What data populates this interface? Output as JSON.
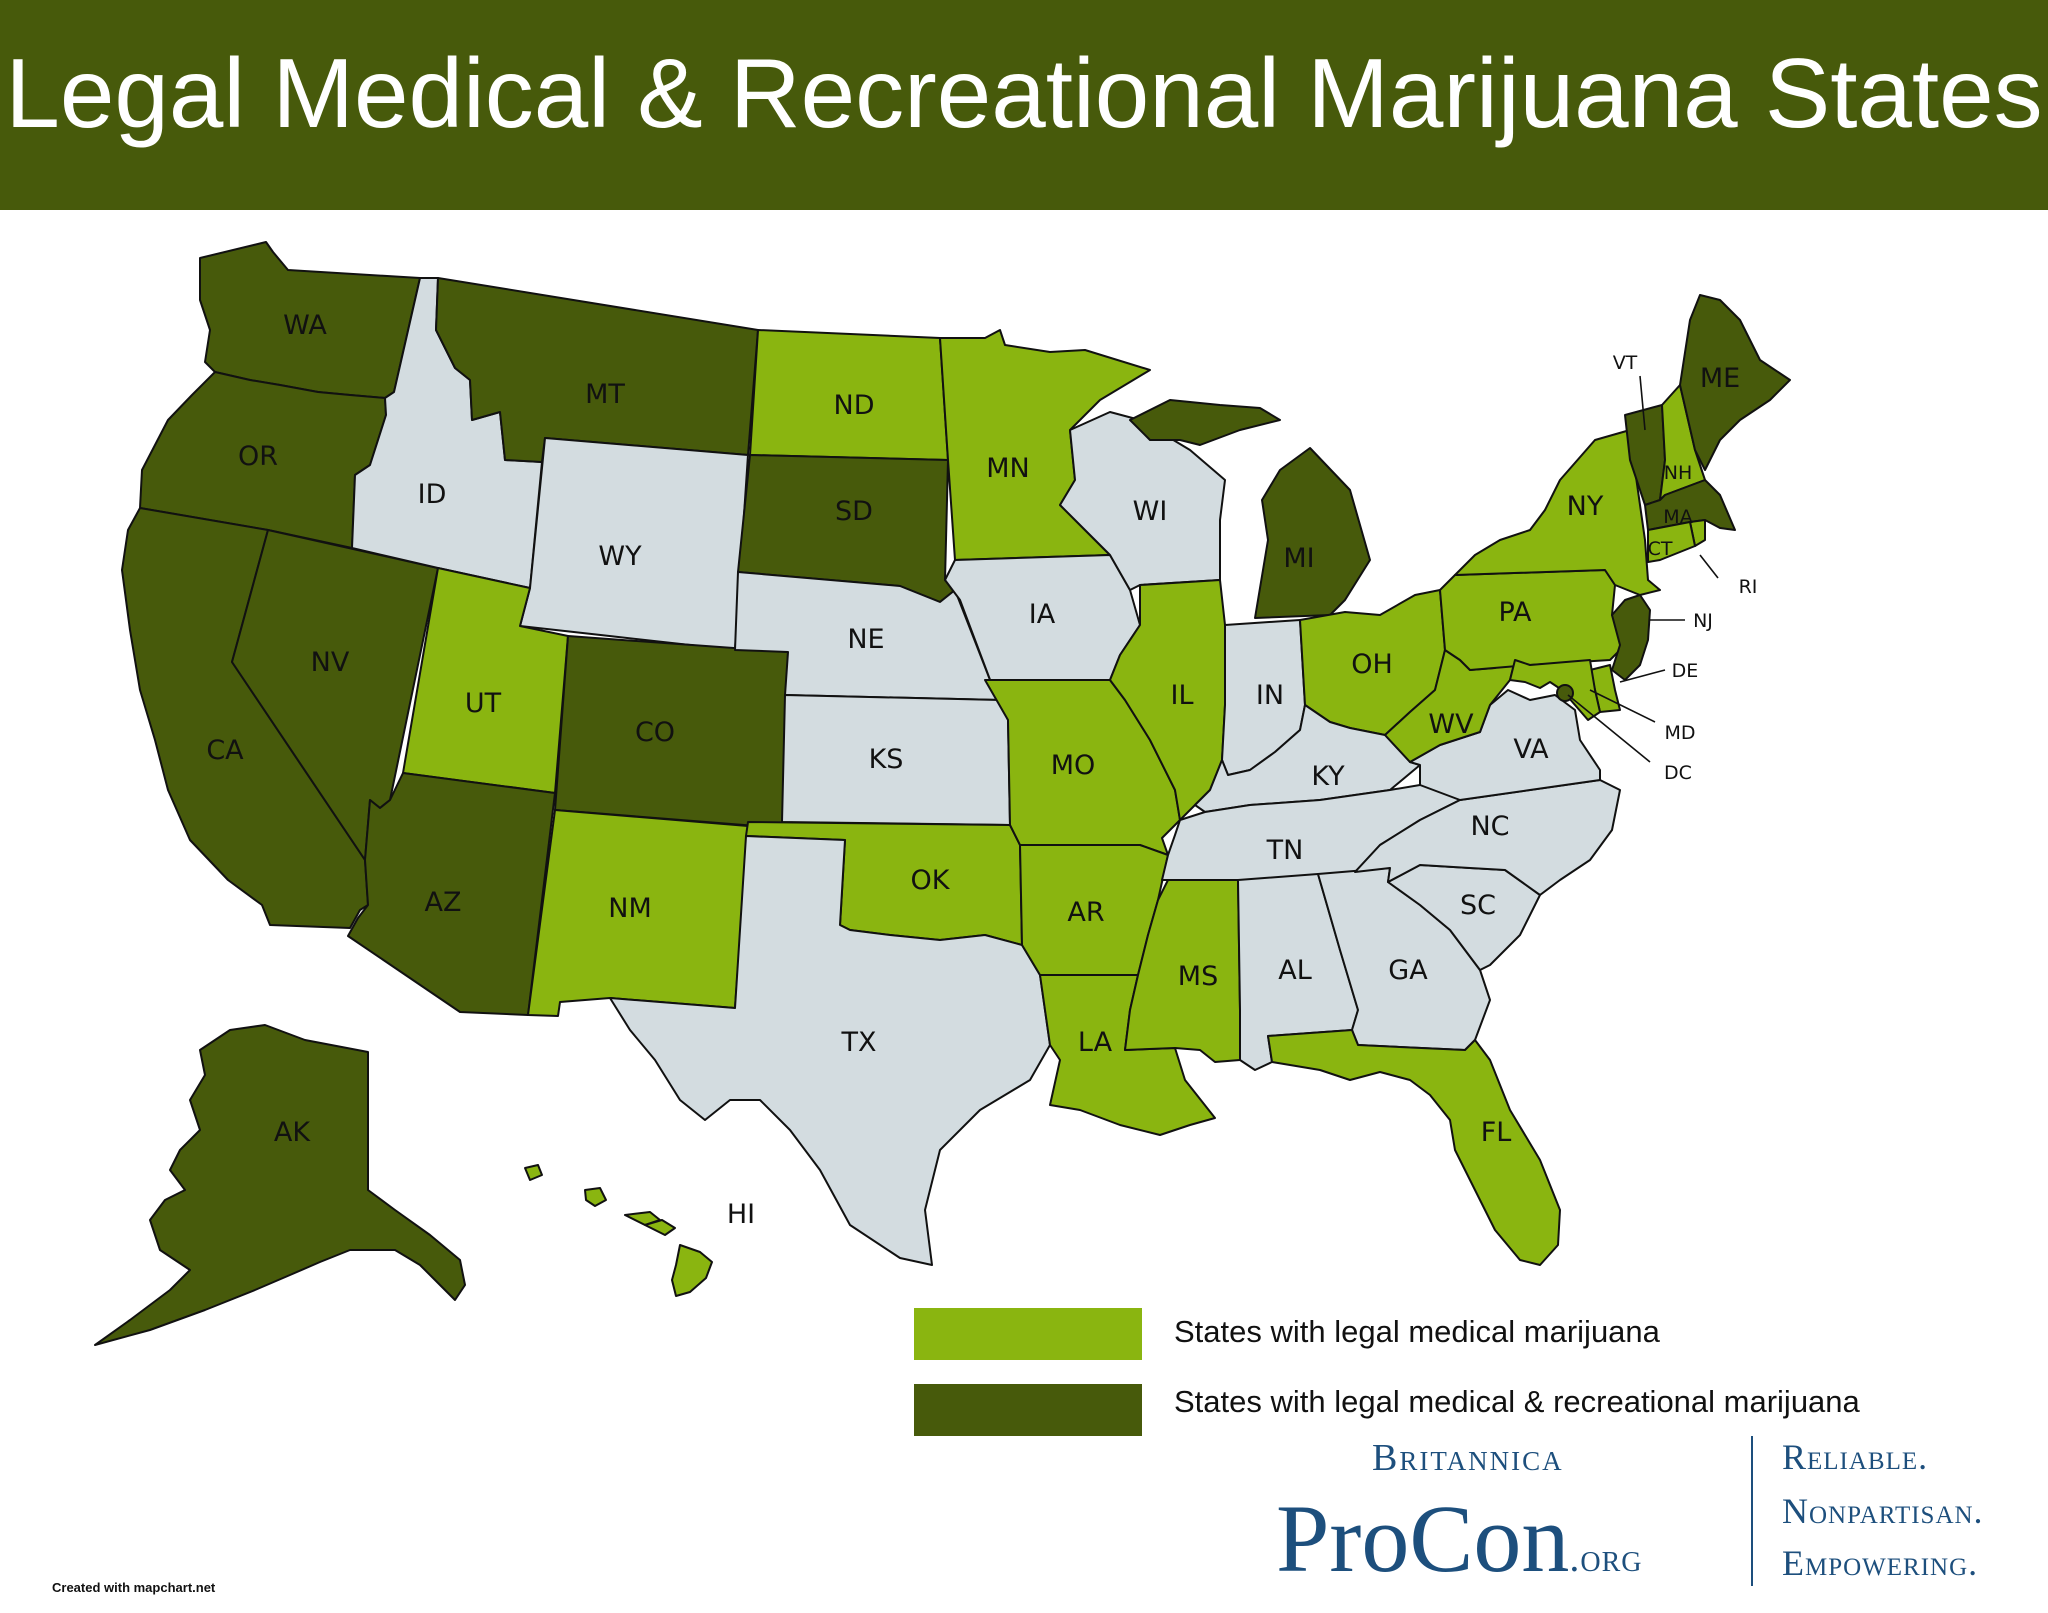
{
  "title": "Legal Medical & Recreational Marijuana States",
  "colors": {
    "banner": "#475a0b",
    "medical": "#8ab510",
    "recreational": "#475a0b",
    "neither": "#d3dce0"
  },
  "legend": {
    "medical_label": "States with legal medical marijuana",
    "recreational_label": "States with legal medical & recreational marijuana"
  },
  "states": [
    {
      "code": "WA",
      "status": "recreational"
    },
    {
      "code": "OR",
      "status": "recreational"
    },
    {
      "code": "CA",
      "status": "recreational"
    },
    {
      "code": "NV",
      "status": "recreational"
    },
    {
      "code": "ID",
      "status": "none"
    },
    {
      "code": "MT",
      "status": "recreational"
    },
    {
      "code": "WY",
      "status": "none"
    },
    {
      "code": "UT",
      "status": "medical"
    },
    {
      "code": "CO",
      "status": "recreational"
    },
    {
      "code": "AZ",
      "status": "recreational"
    },
    {
      "code": "NM",
      "status": "medical"
    },
    {
      "code": "ND",
      "status": "medical"
    },
    {
      "code": "SD",
      "status": "recreational"
    },
    {
      "code": "NE",
      "status": "none"
    },
    {
      "code": "KS",
      "status": "none"
    },
    {
      "code": "OK",
      "status": "medical"
    },
    {
      "code": "TX",
      "status": "none"
    },
    {
      "code": "MN",
      "status": "medical"
    },
    {
      "code": "IA",
      "status": "none"
    },
    {
      "code": "MO",
      "status": "medical"
    },
    {
      "code": "AR",
      "status": "medical"
    },
    {
      "code": "LA",
      "status": "medical"
    },
    {
      "code": "WI",
      "status": "none"
    },
    {
      "code": "IL",
      "status": "medical"
    },
    {
      "code": "MI",
      "status": "recreational"
    },
    {
      "code": "IN",
      "status": "none"
    },
    {
      "code": "OH",
      "status": "medical"
    },
    {
      "code": "KY",
      "status": "none"
    },
    {
      "code": "TN",
      "status": "none"
    },
    {
      "code": "MS",
      "status": "medical"
    },
    {
      "code": "AL",
      "status": "none"
    },
    {
      "code": "GA",
      "status": "none"
    },
    {
      "code": "FL",
      "status": "medical"
    },
    {
      "code": "SC",
      "status": "none"
    },
    {
      "code": "NC",
      "status": "none"
    },
    {
      "code": "VA",
      "status": "none"
    },
    {
      "code": "WV",
      "status": "medical"
    },
    {
      "code": "PA",
      "status": "medical"
    },
    {
      "code": "NY",
      "status": "medical"
    },
    {
      "code": "VT",
      "status": "recreational"
    },
    {
      "code": "NH",
      "status": "medical"
    },
    {
      "code": "ME",
      "status": "recreational"
    },
    {
      "code": "MA",
      "status": "recreational"
    },
    {
      "code": "RI",
      "status": "medical"
    },
    {
      "code": "CT",
      "status": "medical"
    },
    {
      "code": "NJ",
      "status": "recreational"
    },
    {
      "code": "DE",
      "status": "medical"
    },
    {
      "code": "MD",
      "status": "medical"
    },
    {
      "code": "DC",
      "status": "recreational"
    },
    {
      "code": "AK",
      "status": "recreational"
    },
    {
      "code": "HI",
      "status": "medical"
    }
  ],
  "credit": "Created with mapchart.net",
  "logo": {
    "top": "Britannica",
    "main": "ProCon",
    "suffix": ".org",
    "tagline": [
      "Reliable.",
      "Nonpartisan.",
      "Empowering."
    ]
  }
}
